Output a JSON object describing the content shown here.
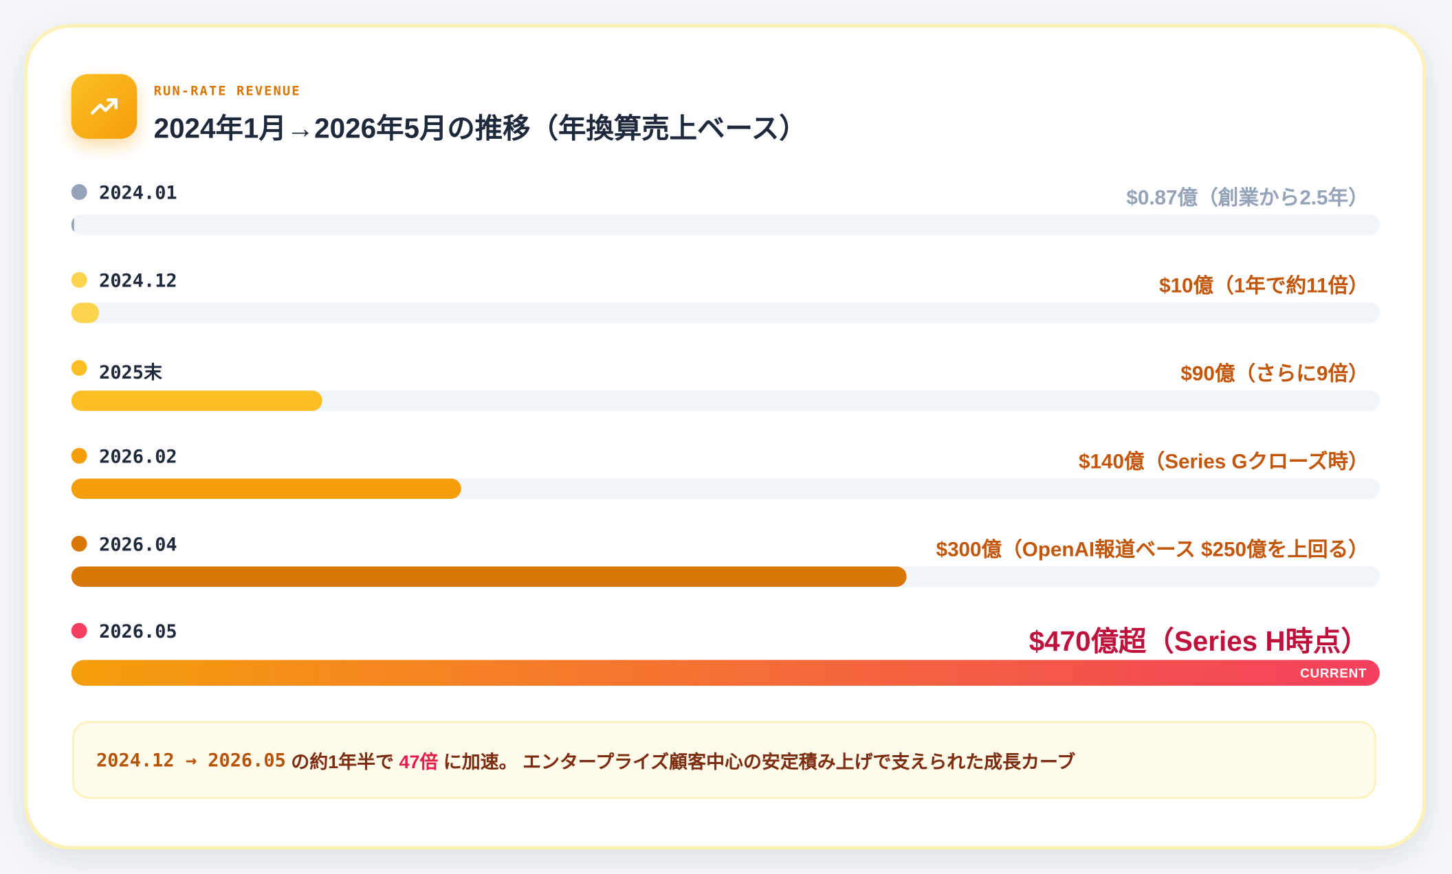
{
  "chart_data": {
    "type": "progress-bar",
    "subtitle": "RUN-RATE REVENUE",
    "title": "2024年1月→2026年5月の推移（年換算売上ベース）",
    "categories": [
      "2024.01",
      "2024.12",
      "2025末",
      "2026.02",
      "2026.04",
      "2026.05"
    ],
    "values": [
      0.87,
      10,
      90,
      140,
      300,
      470
    ],
    "value_labels": [
      "$0.87億（創業から2.5年）",
      "$10億（1年で約11倍）",
      "$90億（さらに9倍）",
      "$140億（Series Gクローズ時）",
      "$300億（OpenAI報道ベース $250億を上回る）",
      "$470億超（Series H時点）"
    ],
    "colors": [
      "#94a3b8",
      "#fcd34d",
      "#fbbf24",
      "#f59e0b",
      "#d97706",
      "#f43f5e"
    ],
    "label_colors": [
      "#94a3b8",
      "#c2570c",
      "#c2570c",
      "#c2570c",
      "#c2570c",
      "#be123c"
    ],
    "current_index": 5,
    "current_label": "CURRENT",
    "current_gradient": [
      "#f59e0b",
      "#f43f5e"
    ],
    "xlim": [
      0,
      470
    ],
    "annotation": [
      {
        "text": "2024.12 → 2026.05",
        "color": "#b45309",
        "mono": true
      },
      {
        "text": " の約1年半で ",
        "color": "#7c2d12",
        "mono": false
      },
      {
        "text": "47倍",
        "color": "#e11d48",
        "mono": false
      },
      {
        "text": " に加速。 エンタープライズ顧客中心の安定積み上げで支えられた成長カーブ",
        "color": "#7c2d12",
        "mono": false
      }
    ]
  }
}
